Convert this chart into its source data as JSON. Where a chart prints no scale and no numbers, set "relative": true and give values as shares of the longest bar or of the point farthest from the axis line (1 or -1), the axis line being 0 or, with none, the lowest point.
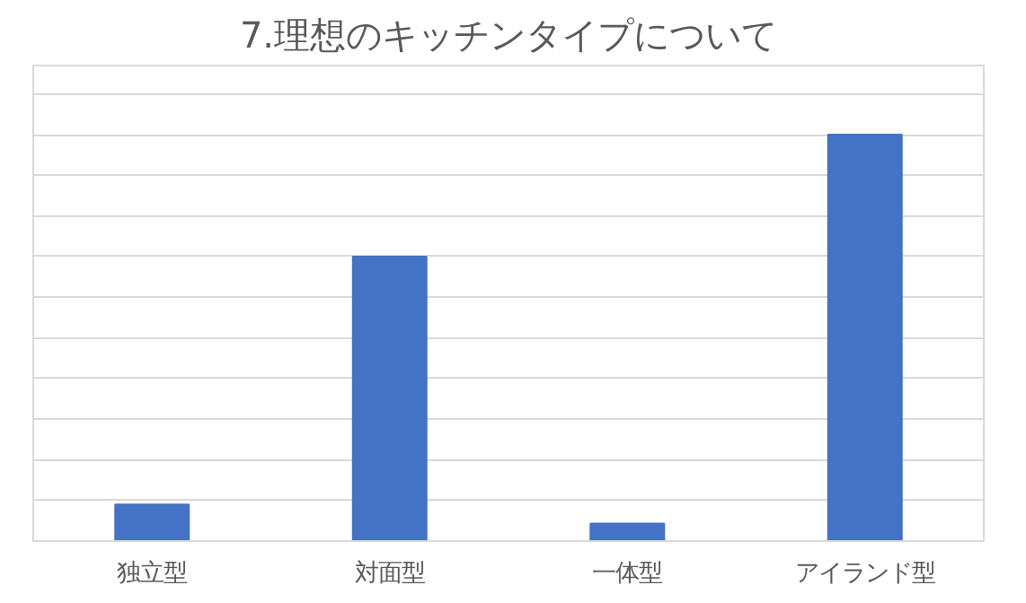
{
  "chart_data": {
    "type": "bar",
    "title": "7.理想のキッチンタイプについて",
    "categories": [
      "独立型",
      "対面型",
      "一体型",
      "アイランド型"
    ],
    "values": [
      0.09,
      0.7,
      0.043,
      1
    ],
    "color": "#4472c4",
    "relative": true,
    "grid": "y"
  }
}
